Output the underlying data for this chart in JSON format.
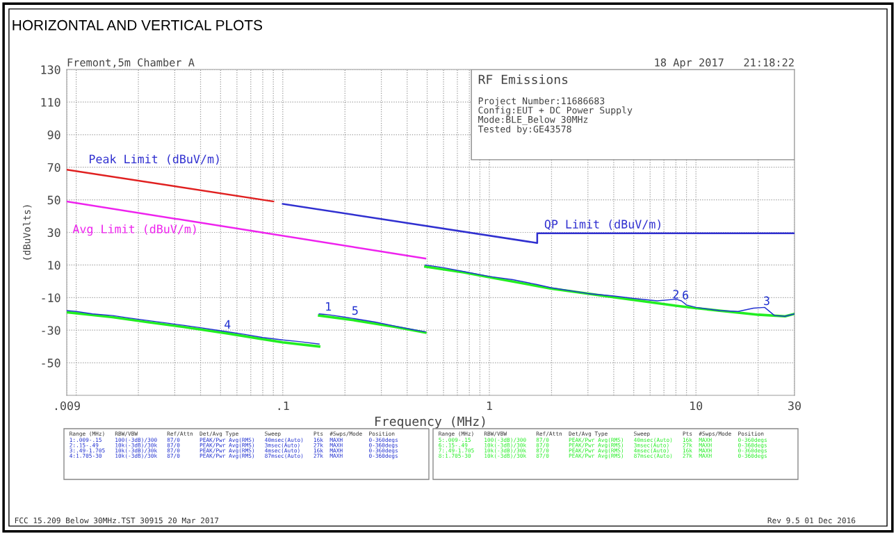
{
  "chart_data": {
    "type": "line",
    "title": "HORIZONTAL AND VERTICAL PLOTS",
    "xlabel": "Frequency (MHz)",
    "ylabel": "(dBuVolts)",
    "log": "x",
    "grid": true,
    "legend": false,
    "marker": "none",
    "line_style": "solid",
    "xlim": [
      0.009,
      30
    ],
    "ylim": [
      -70,
      130
    ],
    "xticks": [
      {
        "value": 0.009,
        "label": ".009"
      },
      {
        "value": 0.01,
        "label": null
      },
      {
        "value": 0.1,
        "label": ".1"
      },
      1,
      10,
      30
    ],
    "yticks": [
      130,
      110,
      90,
      70,
      50,
      30,
      10,
      -10,
      -30,
      -50
    ],
    "series": [
      {
        "color": "#e02020",
        "x": [
          0.009,
          0.09
        ],
        "values": [
          68.5,
          49
        ]
      },
      {
        "color": "#ee22ee",
        "x": [
          0.009,
          0.49
        ],
        "values": [
          49,
          14
        ]
      },
      {
        "color": "#3030d0",
        "x": [
          0.1,
          1.705,
          1.705,
          30
        ],
        "values": [
          47.5,
          23.5,
          29.5,
          29.5
        ]
      },
      {
        "color": "#22ee22",
        "x": [
          0.009,
          0.015,
          0.022,
          0.033,
          0.054,
          0.08,
          0.1,
          0.15
        ],
        "values": [
          -19,
          -22,
          -25,
          -28,
          -32,
          -35.5,
          -37.5,
          -40
        ]
      },
      {
        "color": "#22ee22",
        "x": [
          0.15,
          0.224,
          0.35,
          0.49
        ],
        "values": [
          -21,
          -24,
          -28,
          -31.5
        ]
      },
      {
        "color": "#22ee22",
        "x": [
          0.49,
          0.75,
          1,
          2,
          5,
          8,
          10,
          20,
          27,
          30
        ],
        "values": [
          9,
          5.5,
          2.5,
          -4.5,
          -11.5,
          -15,
          -16.5,
          -20.5,
          -21.5,
          -20
        ]
      },
      {
        "color": "#2030d0",
        "x": [
          0.009,
          0.01,
          0.012,
          0.015,
          0.018,
          0.022,
          0.027,
          0.033,
          0.04,
          0.048,
          0.054,
          0.065,
          0.08,
          0.1,
          0.12,
          0.15
        ],
        "values": [
          -18,
          -18.5,
          -20,
          -21,
          -22.5,
          -24,
          -25.5,
          -27,
          -28.5,
          -30,
          -31,
          -32.5,
          -34.5,
          -36,
          -37,
          -38.5
        ]
      },
      {
        "color": "#2030d0",
        "x": [
          0.15,
          0.166,
          0.2,
          0.224,
          0.28,
          0.35,
          0.42,
          0.49
        ],
        "values": [
          -20,
          -20.5,
          -22,
          -23,
          -25,
          -27.5,
          -29.5,
          -31
        ]
      },
      {
        "color": "#2030d0",
        "x": [
          0.49,
          0.59,
          0.75,
          1,
          1.3,
          1.7,
          2,
          3,
          4,
          5,
          6.5,
          8,
          8.5,
          9,
          10,
          13,
          16,
          19,
          21.5,
          24,
          27,
          30
        ],
        "values": [
          10,
          8.5,
          6,
          3,
          1,
          -2,
          -4,
          -7.5,
          -9,
          -10.5,
          -12,
          -11,
          -12,
          -14.5,
          -16,
          -18,
          -18.5,
          -16.5,
          -16,
          -21,
          -21.5,
          -20
        ]
      }
    ],
    "annotations": [
      "Fremont,5m Chamber A",
      "18 Apr 2017   21:18:22",
      "RF Emissions\nProject Number:11686683\nConfig:EUT + DC Power Supply\nMode:BLE_Below 30MHz\nTested by:GE43578",
      "Range (MHz)   RBW/VBW         Ref/Attn  Det/Avg Type        Sweep          Pts  #Swps/Mode  Position\n1:.009-.15    100(-3dB)/300   87/0      PEAK/Pwr Avg(RMS)   40msec(Auto)   16k  MAXH        0-360degs\n2:.15-.49     10k(-3dB)/30k   87/0      PEAK/Pwr Avg(RMS)   3msec(Auto)    27k  MAXH        0-360degs\n3:.49-1.705   10k(-3dB)/30k   87/0      PEAK/Pwr Avg(RMS)   4msec(Auto)    16k  MAXH        0-360degs\n4:1.705-30    10k(-3dB)/30k   87/0      PEAK/Pwr Avg(RMS)   87msec(Auto)   27k  MAXH        0-360degs",
      "Range (MHz)   RBW/VBW         Ref/Attn  Det/Avg Type        Sweep          Pts  #Swps/Mode  Position\n5:.009-.15    100(-3dB)/300   87/0      PEAK/Pwr Avg(RMS)   40msec(Auto)   16k  MAXH        0-360degs\n6:.15-.49     10k(-3dB)/30k   87/0      PEAK/Pwr Avg(RMS)   3msec(Auto)    27k  MAXH        0-360degs\n7:.49-1.705   10k(-3dB)/30k   87/0      PEAK/Pwr Avg(RMS)   4msec(Auto)    16k  MAXH        0-360degs\n8:1.705-30    10k(-3dB)/30k   87/0      PEAK/Pwr Avg(RMS)   87msec(Auto)   27k  MAXH        0-360degs",
      "FCC 15.209 Below 30MHz.TST 30915 20 Mar 2017",
      "Rev 9.5 01 Dec 2016",
      "Peak Limit (dBuV/m)",
      "Avg Limit (dBuV/m)",
      "QP Limit (dBuV/m)",
      {
        "text": "1",
        "x": 0.166,
        "y": -19.5
      },
      {
        "text": "2",
        "x": 8.0,
        "y": -12
      },
      {
        "text": "3",
        "x": 22,
        "y": -16
      },
      {
        "text": "4",
        "x": 0.054,
        "y": -30.5
      },
      {
        "text": "5",
        "x": 0.224,
        "y": -22
      },
      {
        "text": "6",
        "x": 8.9,
        "y": -12.5
      }
    ]
  }
}
